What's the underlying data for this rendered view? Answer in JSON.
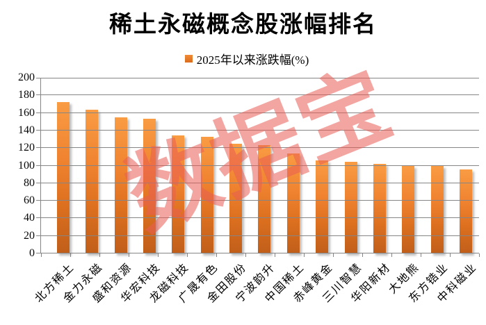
{
  "title": "稀土永磁概念股涨幅排名",
  "legend": {
    "label": "2025年以来涨跌幅(%)",
    "swatch_color": "#ED7D31"
  },
  "watermark": {
    "text": "数据宝",
    "color_rgba": "rgba(233,92,83,0.55)"
  },
  "chart_data": {
    "type": "bar",
    "title": "稀土永磁概念股涨幅排名",
    "legend_entries": [
      "2025年以来涨跌幅(%)"
    ],
    "categories": [
      "北方稀土",
      "金力永磁",
      "盛和资源",
      "华宏科技",
      "龙磁科技",
      "广晟有色",
      "金田股份",
      "宁波韵升",
      "中国稀土",
      "赤峰黄金",
      "三川智慧",
      "华阳新材",
      "大地熊",
      "东方锆业",
      "中科磁业"
    ],
    "values": [
      172,
      164,
      155,
      153,
      134,
      133,
      125,
      123,
      114,
      106,
      104,
      102,
      100,
      100,
      96
    ],
    "xlabel": "",
    "ylabel": "",
    "ylim": [
      0,
      200
    ],
    "y_ticks": [
      0,
      20,
      40,
      60,
      80,
      100,
      120,
      140,
      160,
      180,
      200
    ],
    "grid": true,
    "legend_position": "top",
    "bar_color_top": "#F99C43",
    "bar_color_bottom": "#C05E1A",
    "gridline_color": "#858585"
  }
}
